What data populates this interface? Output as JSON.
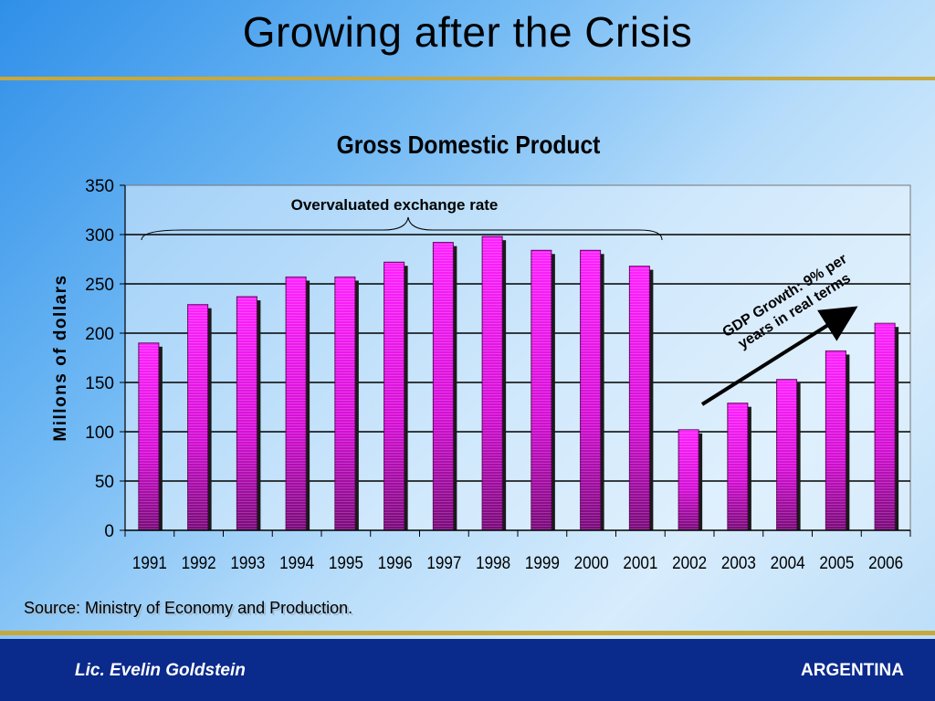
{
  "slide": {
    "title": "Growing after the Crisis",
    "source": "Source: Ministry of Economy and Production.",
    "footer_author": "Lic. Evelin Goldstein",
    "footer_country": "ARGENTINA"
  },
  "colors": {
    "bar": "#ff1aff",
    "bar_dark": "#8a0a8a",
    "footer": "#0a2a8c",
    "rule": "#c8a83a"
  },
  "chart_data": {
    "type": "bar",
    "title": "Gross Domestic Product",
    "xlabel": "",
    "ylabel": "Millons of dollars",
    "ylim": [
      0,
      350
    ],
    "yticks": [
      0,
      50,
      100,
      150,
      200,
      250,
      300,
      350
    ],
    "grid": true,
    "categories": [
      "1991",
      "1992",
      "1993",
      "1994",
      "1995",
      "1996",
      "1997",
      "1998",
      "1999",
      "2000",
      "2001",
      "2002",
      "2003",
      "2004",
      "2005",
      "2006"
    ],
    "values": [
      190,
      229,
      237,
      257,
      257,
      272,
      292,
      298,
      284,
      284,
      268,
      102,
      129,
      153,
      182,
      210
    ],
    "annotations": {
      "bracket_label": "Overvaluated exchange rate",
      "growth_label_line1": "GDP Growth: 9% per",
      "growth_label_line2": "years in real terms"
    }
  }
}
